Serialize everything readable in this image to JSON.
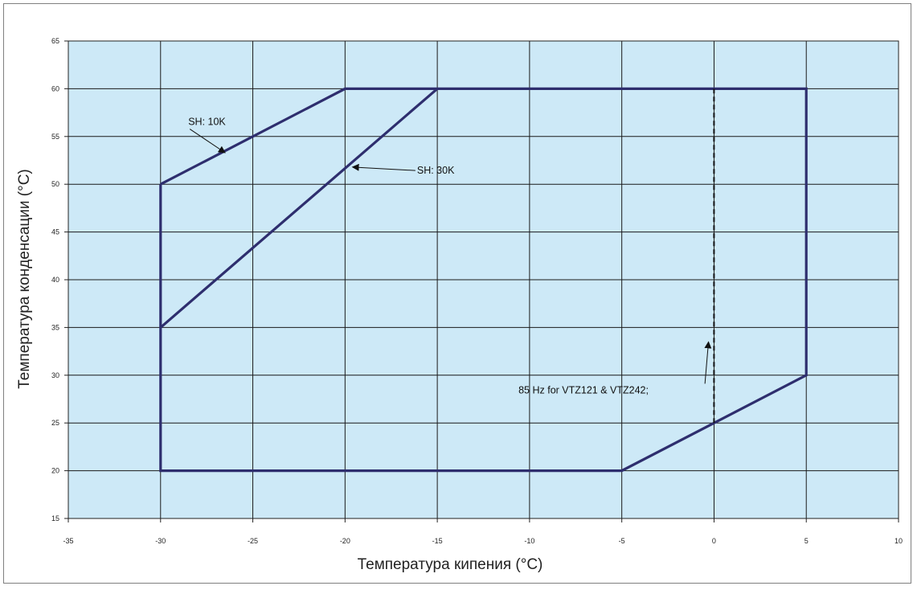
{
  "chart_data": {
    "type": "line",
    "xlabel": "Температура кипения (°C)",
    "ylabel": "Температура конденсации (°C)",
    "xlim": [
      -35,
      10
    ],
    "ylim": [
      15,
      65
    ],
    "x_ticks": [
      -35,
      -30,
      -25,
      -20,
      -15,
      -10,
      -5,
      0,
      5,
      10
    ],
    "y_ticks": [
      15,
      20,
      25,
      30,
      35,
      40,
      45,
      50,
      55,
      60,
      65
    ],
    "grid": true,
    "colors": {
      "plot_background": "#cde9f7",
      "envelope": "#2e2e6e",
      "grid": "#1a1a1a"
    },
    "series": [
      {
        "style": "solid",
        "x": [
          -30,
          -30,
          -5,
          5,
          5,
          -20,
          -30
        ],
        "y": [
          50,
          20,
          20,
          30,
          60,
          60,
          50
        ]
      },
      {
        "style": "solid",
        "x": [
          -30,
          -15
        ],
        "y": [
          35,
          60
        ]
      },
      {
        "style": "dashed",
        "x": [
          0,
          0
        ],
        "y": [
          25,
          60
        ]
      }
    ],
    "annotations": [
      {
        "id": "sh10",
        "text": "SH: 10K",
        "text_at": [
          -28.5,
          56.2
        ],
        "arrow_to": [
          -26.5,
          53.3
        ]
      },
      {
        "id": "sh30",
        "text": "SH: 30K",
        "text_at": [
          -16.1,
          51.1
        ],
        "arrow_to": [
          -19.6,
          51.8
        ]
      },
      {
        "id": "hz85",
        "text": "85 Hz for VTZ121 & VTZ242;",
        "text_at": [
          -10.6,
          28.1
        ],
        "arrow_to": [
          -0.3,
          33.5
        ]
      }
    ]
  }
}
